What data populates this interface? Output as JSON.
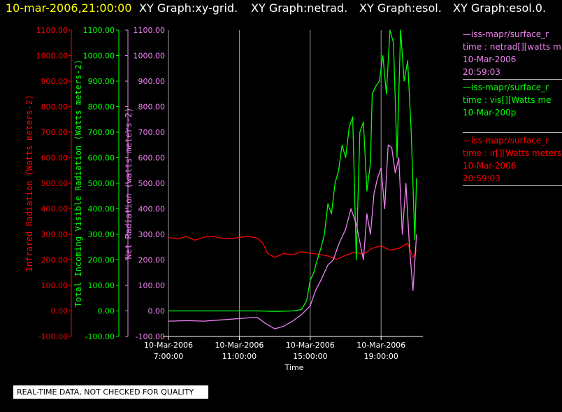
{
  "header": {
    "datetime": "10-mar-2006,21:00:00",
    "graphs": [
      "XY Graph:xy-grid.",
      "XY Graph:netrad.",
      "XY Graph:esol.",
      "XY Graph:esol.0."
    ]
  },
  "disclaimer": "REAL-TIME DATA, NOT CHECKED FOR QUALITY",
  "legend": [
    {
      "name_line": "—iss-mapr/surface_r",
      "var_line": "time : netrad[][watts m",
      "date_line": "10-Mar-2006",
      "time_line": "20:59:03",
      "color": "#ee82ee"
    },
    {
      "name_line": "—iss-mapr/surface_r",
      "var_line": "time : vis[][Watts me",
      "date_line": "10-Mar-200p",
      "time_line": "",
      "color": "#00ff00"
    },
    {
      "name_line": "—iss-mapr/surface_r",
      "var_line": "time : ir[][Watts meters",
      "date_line": "10-Mar-2006",
      "time_line": "20:59:03",
      "color": "#ff0000"
    }
  ],
  "chart_data": {
    "type": "line",
    "xlabel": "Time",
    "x_ticks": [
      {
        "date": "10-Mar-2006",
        "time": "7:00:00",
        "hour": 7
      },
      {
        "date": "10-Mar-2006",
        "time": "11:00:00",
        "hour": 11
      },
      {
        "date": "10-Mar-2006",
        "time": "15:00:00",
        "hour": 15
      },
      {
        "date": "10-Mar-2006",
        "time": "19:00:00",
        "hour": 19
      }
    ],
    "xlim_hours": [
      7,
      21.2
    ],
    "ylim": [
      -100,
      1100
    ],
    "y_tick_labels": [
      "1100.00",
      "1000.00",
      "900.00",
      "800.00",
      "700.00",
      "600.00",
      "500.00",
      "400.00",
      "300.00",
      "200.00",
      "100.00",
      "0.00",
      "-100.00"
    ],
    "axes": [
      {
        "label": "Infrared Radiation (Watts meters-2)",
        "color": "#ff0000"
      },
      {
        "label": "Total Incoming Visible Radiation (Watts meters-2)",
        "color": "#00ff00"
      },
      {
        "label": "Net Radiation (watts meters-2)",
        "color": "#ee82ee"
      }
    ],
    "grid": "vertical",
    "series": [
      {
        "color": "#ff0000",
        "x": [
          7.0,
          7.5,
          8.0,
          8.5,
          9.0,
          9.5,
          10.0,
          10.5,
          11.0,
          11.5,
          12.0,
          12.3,
          12.6,
          13.0,
          13.5,
          14.0,
          14.5,
          15.0,
          15.5,
          16.0,
          16.3,
          16.5,
          17.0,
          17.5,
          18.0,
          18.5,
          19.0,
          19.5,
          20.0,
          20.5,
          20.8,
          21.0
        ],
        "values": [
          288,
          282,
          291,
          277,
          289,
          292,
          285,
          283,
          288,
          292,
          285,
          268,
          225,
          210,
          225,
          220,
          232,
          226,
          222,
          215,
          208,
          202,
          218,
          230,
          222,
          245,
          255,
          238,
          245,
          265,
          208,
          240
        ]
      },
      {
        "color": "#00ff00",
        "x": [
          7.0,
          8.0,
          9.0,
          10.0,
          11.0,
          12.0,
          13.0,
          14.0,
          14.5,
          14.8,
          15.0,
          15.2,
          15.4,
          15.6,
          15.8,
          16.0,
          16.2,
          16.4,
          16.6,
          16.8,
          17.0,
          17.2,
          17.4,
          17.6,
          17.8,
          18.0,
          18.2,
          18.4,
          18.5,
          18.7,
          18.9,
          19.1,
          19.3,
          19.5,
          19.7,
          19.9,
          20.1,
          20.3,
          20.5,
          20.7,
          20.9,
          21.0
        ],
        "values": [
          0,
          0,
          0,
          0,
          0,
          0,
          -2,
          0,
          5,
          40,
          120,
          150,
          200,
          245,
          300,
          420,
          380,
          500,
          550,
          650,
          600,
          720,
          760,
          200,
          700,
          740,
          470,
          580,
          850,
          880,
          900,
          1000,
          850,
          1100,
          1050,
          600,
          1100,
          900,
          980,
          700,
          280,
          520
        ]
      },
      {
        "color": "#ee82ee",
        "x": [
          7.0,
          8.0,
          9.0,
          10.0,
          11.0,
          12.0,
          12.5,
          13.0,
          13.5,
          14.0,
          14.5,
          15.0,
          15.3,
          15.6,
          16.0,
          16.3,
          16.6,
          17.0,
          17.3,
          17.6,
          18.0,
          18.2,
          18.4,
          18.6,
          18.8,
          19.0,
          19.2,
          19.4,
          19.6,
          19.8,
          20.0,
          20.2,
          20.4,
          20.6,
          20.8,
          21.0
        ],
        "values": [
          -40,
          -38,
          -40,
          -35,
          -30,
          -25,
          -50,
          -70,
          -60,
          -40,
          -15,
          20,
          80,
          120,
          180,
          200,
          260,
          320,
          400,
          340,
          200,
          380,
          300,
          460,
          520,
          560,
          400,
          650,
          640,
          540,
          600,
          300,
          500,
          250,
          80,
          300
        ]
      }
    ]
  }
}
